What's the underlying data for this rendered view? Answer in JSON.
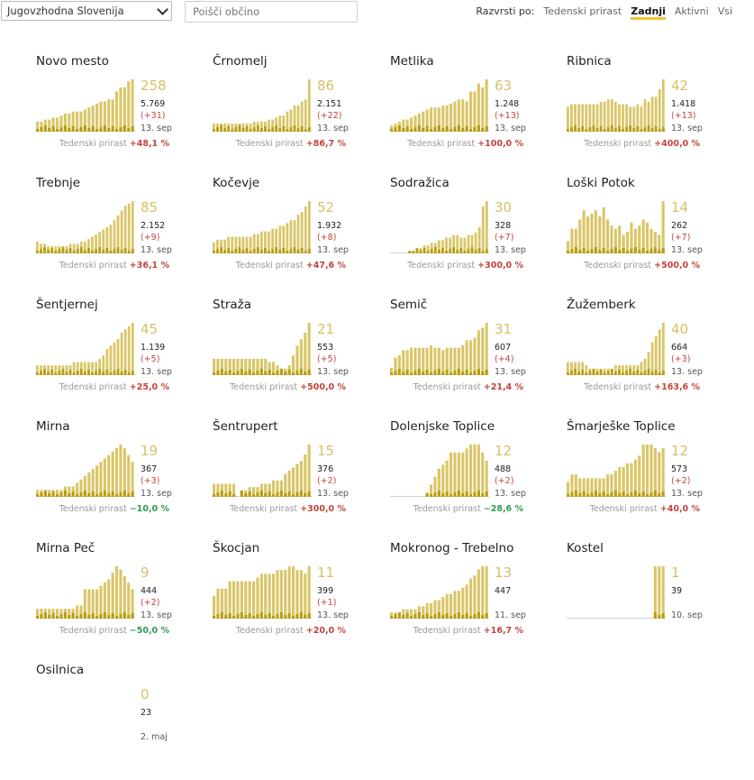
{
  "filters": {
    "region": "Jugovzhodna Slovenija",
    "search_placeholder": "Poišči občino",
    "sort_label": "Razvrsti po:",
    "sort_options": [
      "Tedenski prirast",
      "Zadnji",
      "Aktivni",
      "Vsi"
    ],
    "sort_active": "Zadnji"
  },
  "growth_label": "Tedenski prirast",
  "colors": {
    "bar_light": "#d9c667",
    "bar_dark": "#b99d0c",
    "value": "#d4c168",
    "up": "#c1443d",
    "down": "#2e9a55"
  },
  "municipalities": [
    {
      "name": "Novo mesto",
      "active": "258",
      "total": "5.769",
      "delta": "(+31)",
      "date": "13. sep",
      "growth": "+48,1 %",
      "dir": "up",
      "bars": [
        5,
        5,
        6,
        6,
        7,
        7,
        8,
        9,
        9,
        10,
        10,
        10,
        11,
        12,
        13,
        14,
        15,
        15,
        16,
        16,
        20,
        22,
        22,
        25,
        26
      ]
    },
    {
      "name": "Črnomelj",
      "active": "86",
      "total": "2.151",
      "delta": "(+22)",
      "date": "13. sep",
      "growth": "+86,7 %",
      "dir": "up",
      "bars": [
        4,
        4,
        4,
        4,
        4,
        4,
        4,
        4,
        4,
        4,
        4,
        5,
        5,
        5,
        5,
        6,
        6,
        7,
        8,
        8,
        10,
        11,
        13,
        13,
        15,
        16,
        26
      ]
    },
    {
      "name": "Metlika",
      "active": "63",
      "total": "1.248",
      "delta": "(+13)",
      "date": "13. sep",
      "growth": "+100,0 %",
      "dir": "up",
      "bars": [
        3,
        4,
        5,
        6,
        6,
        7,
        8,
        9,
        10,
        11,
        12,
        12,
        12,
        13,
        13,
        14,
        15,
        16,
        16,
        15,
        20,
        20,
        24,
        22,
        26
      ]
    },
    {
      "name": "Ribnica",
      "active": "42",
      "total": "1.418",
      "delta": "(+13)",
      "date": "13. sep",
      "growth": "+400,0 %",
      "dir": "up",
      "bars": [
        10,
        11,
        11,
        11,
        11,
        11,
        11,
        11,
        11,
        12,
        12,
        13,
        13,
        12,
        11,
        11,
        11,
        10,
        10,
        11,
        10,
        13,
        12,
        14,
        14,
        17,
        21
      ]
    },
    {
      "name": "Trebnje",
      "active": "85",
      "total": "2.152",
      "delta": "(+9)",
      "date": "13. sep",
      "growth": "+36,1 %",
      "dir": "up",
      "bars": [
        5,
        4,
        4,
        3,
        3,
        3,
        3,
        3,
        3,
        4,
        4,
        4,
        5,
        5,
        6,
        7,
        8,
        9,
        10,
        11,
        12,
        14,
        16,
        18,
        20,
        21,
        22
      ]
    },
    {
      "name": "Kočevje",
      "active": "52",
      "total": "1.932",
      "delta": "(+8)",
      "date": "13. sep",
      "growth": "+47,6 %",
      "dir": "up",
      "bars": [
        4,
        5,
        5,
        5,
        6,
        6,
        6,
        6,
        6,
        6,
        6,
        7,
        7,
        8,
        8,
        8,
        9,
        9,
        10,
        10,
        11,
        12,
        12,
        14,
        15,
        17,
        19
      ]
    },
    {
      "name": "Sodražica",
      "active": "30",
      "total": "328",
      "delta": "(+7)",
      "date": "13. sep",
      "growth": "+300,0 %",
      "dir": "up",
      "bars": [
        0,
        0,
        0,
        0,
        0,
        1,
        1,
        2,
        2,
        3,
        3,
        4,
        4,
        5,
        5,
        6,
        6,
        7,
        7,
        6,
        6,
        7,
        7,
        8,
        10,
        18,
        20
      ]
    },
    {
      "name": "Loški Potok",
      "active": "14",
      "total": "262",
      "delta": "(+7)",
      "date": "13. sep",
      "growth": "+500,0 %",
      "dir": "up",
      "bars": [
        4,
        8,
        8,
        11,
        14,
        12,
        13,
        14,
        12,
        15,
        11,
        9,
        8,
        9,
        6,
        7,
        10,
        8,
        9,
        11,
        10,
        8,
        7,
        6,
        17
      ]
    },
    {
      "name": "Šentjernej",
      "active": "45",
      "total": "1.139",
      "delta": "(+5)",
      "date": "13. sep",
      "growth": "+25,0 %",
      "dir": "up",
      "bars": [
        3,
        3,
        3,
        3,
        3,
        3,
        3,
        3,
        3,
        3,
        4,
        4,
        4,
        4,
        4,
        4,
        4,
        5,
        6,
        8,
        9,
        10,
        11,
        13,
        14,
        15,
        16
      ]
    },
    {
      "name": "Straža",
      "active": "21",
      "total": "553",
      "delta": "(+5)",
      "date": "13. sep",
      "growth": "+500,0 %",
      "dir": "up",
      "bars": [
        5,
        5,
        5,
        5,
        5,
        5,
        5,
        5,
        5,
        5,
        5,
        5,
        5,
        5,
        4,
        4,
        3,
        2,
        2,
        3,
        6,
        9,
        11,
        13,
        16
      ]
    },
    {
      "name": "Semič",
      "active": "31",
      "total": "607",
      "delta": "(+4)",
      "date": "13. sep",
      "growth": "+21,4 %",
      "dir": "up",
      "bars": [
        3,
        7,
        8,
        10,
        10,
        11,
        11,
        11,
        11,
        11,
        12,
        11,
        11,
        10,
        11,
        11,
        11,
        11,
        12,
        14,
        14,
        15,
        18,
        19,
        21
      ]
    },
    {
      "name": "Žužemberk",
      "active": "40",
      "total": "664",
      "delta": "(+3)",
      "date": "13. sep",
      "growth": "+163,6 %",
      "dir": "up",
      "bars": [
        4,
        4,
        4,
        4,
        4,
        3,
        2,
        2,
        2,
        2,
        2,
        2,
        2,
        3,
        3,
        3,
        3,
        3,
        3,
        3,
        4,
        5,
        7,
        10,
        12,
        14,
        16
      ]
    },
    {
      "name": "Mirna",
      "active": "19",
      "total": "367",
      "delta": "(+3)",
      "date": "13. sep",
      "growth": "−10,0 %",
      "dir": "down",
      "bars": [
        2,
        2,
        2,
        2,
        2,
        2,
        2,
        3,
        3,
        3,
        4,
        5,
        6,
        7,
        8,
        9,
        10,
        11,
        12,
        13,
        14,
        15,
        14,
        12,
        10
      ]
    },
    {
      "name": "Šentrupert",
      "active": "15",
      "total": "376",
      "delta": "(+2)",
      "date": "13. sep",
      "growth": "+300,0 %",
      "dir": "up",
      "bars": [
        4,
        4,
        4,
        4,
        4,
        4,
        0,
        2,
        2,
        3,
        3,
        3,
        4,
        4,
        4,
        5,
        5,
        5,
        7,
        8,
        9,
        10,
        11,
        13,
        16
      ]
    },
    {
      "name": "Dolenjske Toplice",
      "active": "12",
      "total": "488",
      "delta": "(+2)",
      "date": "13. sep",
      "growth": "−28,6 %",
      "dir": "down",
      "bars": [
        0,
        0,
        0,
        0,
        0,
        0,
        0,
        0,
        0,
        1,
        3,
        5,
        7,
        8,
        9,
        11,
        11,
        11,
        11,
        12,
        13,
        13,
        13,
        11,
        9
      ]
    },
    {
      "name": "Šmarješke Toplice",
      "active": "12",
      "total": "573",
      "delta": "(+2)",
      "date": "13. sep",
      "growth": "+40,0 %",
      "dir": "up",
      "bars": [
        4,
        6,
        6,
        5,
        5,
        5,
        5,
        5,
        5,
        5,
        6,
        6,
        7,
        8,
        8,
        9,
        9,
        10,
        11,
        14,
        14,
        14,
        13,
        12,
        13
      ]
    },
    {
      "name": "Mirna Peč",
      "active": "9",
      "total": "444",
      "delta": "(+2)",
      "date": "13. sep",
      "growth": "−50,0 %",
      "dir": "down",
      "bars": [
        3,
        3,
        3,
        3,
        3,
        3,
        3,
        3,
        3,
        3,
        4,
        4,
        9,
        9,
        9,
        9,
        10,
        11,
        12,
        14,
        16,
        15,
        13,
        11,
        9
      ]
    },
    {
      "name": "Škocjan",
      "active": "11",
      "total": "399",
      "delta": "(+1)",
      "date": "13. sep",
      "growth": "+20,0 %",
      "dir": "up",
      "bars": [
        6,
        8,
        8,
        8,
        10,
        10,
        10,
        10,
        10,
        10,
        10,
        11,
        12,
        12,
        12,
        12,
        13,
        13,
        13,
        14,
        14,
        13,
        13,
        12,
        14
      ]
    },
    {
      "name": "Mokronog - Trebelno",
      "active": "13",
      "total": "447",
      "delta": "",
      "date": "11. sep",
      "growth": "+16,7 %",
      "dir": "up",
      "bars": [
        2,
        2,
        2,
        3,
        3,
        3,
        3,
        4,
        4,
        5,
        5,
        6,
        6,
        7,
        8,
        8,
        9,
        9,
        10,
        11,
        13,
        14,
        16,
        17,
        17
      ]
    },
    {
      "name": "Kostel",
      "active": "1",
      "total": "39",
      "delta": "",
      "date": "10. sep",
      "growth": "",
      "dir": "up",
      "bars": [
        0,
        0,
        0,
        0,
        0,
        0,
        0,
        0,
        0,
        0,
        0,
        0,
        0,
        0,
        0,
        0,
        0,
        0,
        0,
        0,
        0,
        0,
        14,
        14,
        14
      ]
    },
    {
      "name": "Osilnica",
      "active": "0",
      "total": "23",
      "delta": "",
      "date": "2. maj",
      "growth": "",
      "dir": "up",
      "bars": []
    }
  ]
}
